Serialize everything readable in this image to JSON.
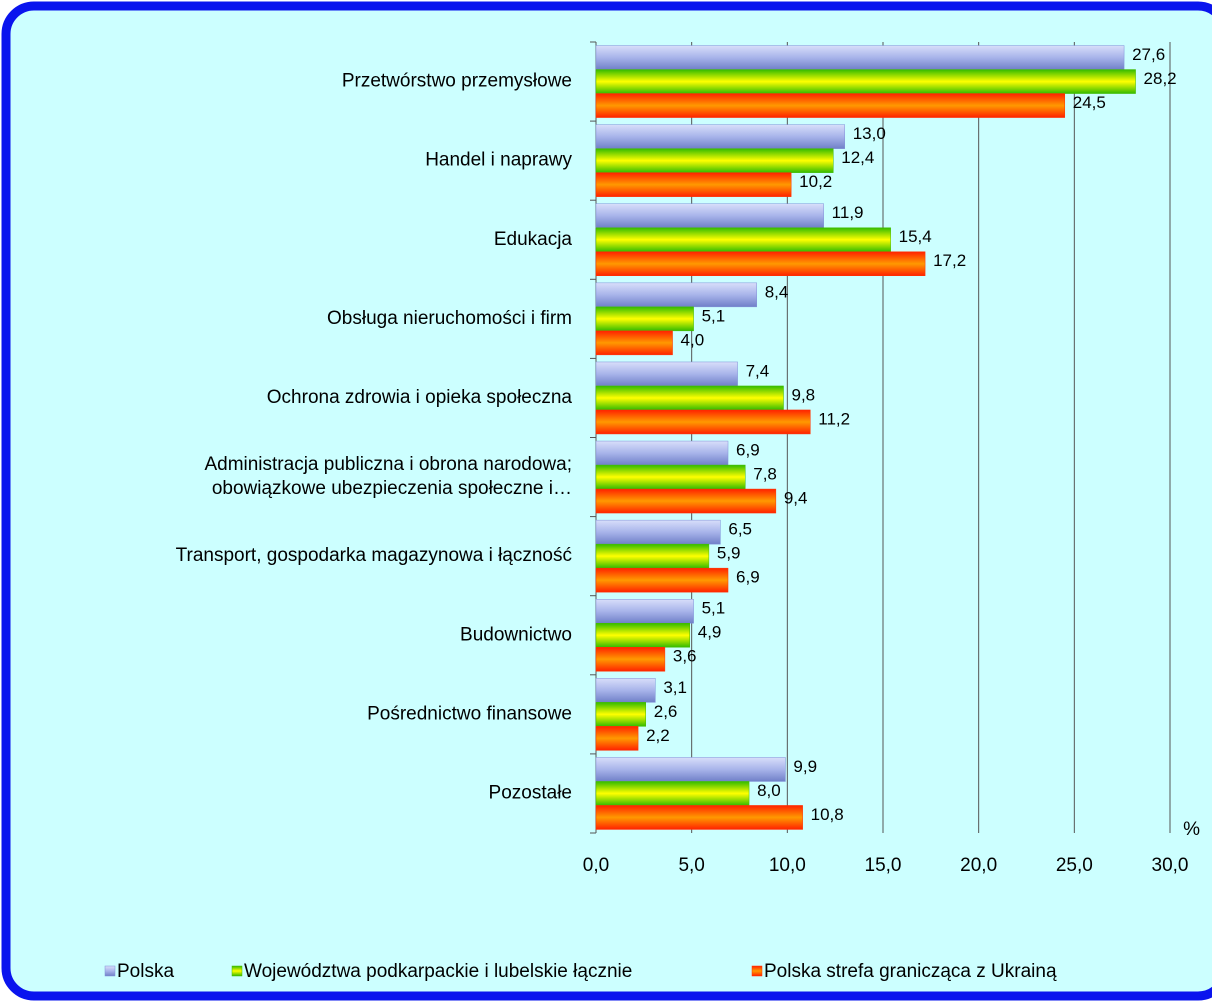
{
  "chart_data": {
    "type": "bar",
    "orientation": "horizontal",
    "categories": [
      "Przetwórstwo przemysłowe",
      "Handel i naprawy",
      "Edukacja",
      "Obsługa nieruchomości i firm",
      "Ochrona zdrowia i opieka społeczna",
      "Administracja publiczna i obrona narodowa;\nobowiązkowe ubezpieczenia społeczne i…",
      "Transport, gospodarka magazynowa i łączność",
      "Budownictwo",
      "Pośrednictwo finansowe",
      "Pozostałe"
    ],
    "series": [
      {
        "name": "Polska",
        "color": "#8090d8",
        "values": [
          27.6,
          13.0,
          11.9,
          8.4,
          7.4,
          6.9,
          6.5,
          5.1,
          3.1,
          9.9
        ],
        "value_labels": [
          "27,6",
          "13,0",
          "11,9",
          "8,4",
          "7,4",
          "6,9",
          "6,5",
          "5,1",
          "3,1",
          "9,9"
        ]
      },
      {
        "name": "Województwa podkarpackie i lubelskie łącznie",
        "color": "#44bb00",
        "values": [
          28.2,
          12.4,
          15.4,
          5.1,
          9.8,
          7.8,
          5.9,
          4.9,
          2.6,
          8.0
        ],
        "value_labels": [
          "28,2",
          "12,4",
          "15,4",
          "5,1",
          "9,8",
          "7,8",
          "5,9",
          "4,9",
          "2,6",
          "8,0"
        ]
      },
      {
        "name": "Polska strefa granicząca z Ukrainą",
        "color": "#ff3300",
        "values": [
          24.5,
          10.2,
          17.2,
          4.0,
          11.2,
          9.4,
          6.9,
          3.6,
          2.2,
          10.8
        ],
        "value_labels": [
          "24,5",
          "10,2",
          "17,2",
          "4,0",
          "11,2",
          "9,4",
          "6,9",
          "3,6",
          "2,2",
          "10,8"
        ]
      }
    ],
    "xlim": [
      0,
      30
    ],
    "xticks": [
      {
        "value": 0,
        "label": "0,0"
      },
      {
        "value": 5,
        "label": "5,0"
      },
      {
        "value": 10,
        "label": "10,0"
      },
      {
        "value": 15,
        "label": "15,0"
      },
      {
        "value": 20,
        "label": "20,0"
      },
      {
        "value": 25,
        "label": "25,0"
      },
      {
        "value": 30,
        "label": "30,0"
      }
    ],
    "x_unit": "%",
    "grid": true,
    "legend": "bottom"
  }
}
